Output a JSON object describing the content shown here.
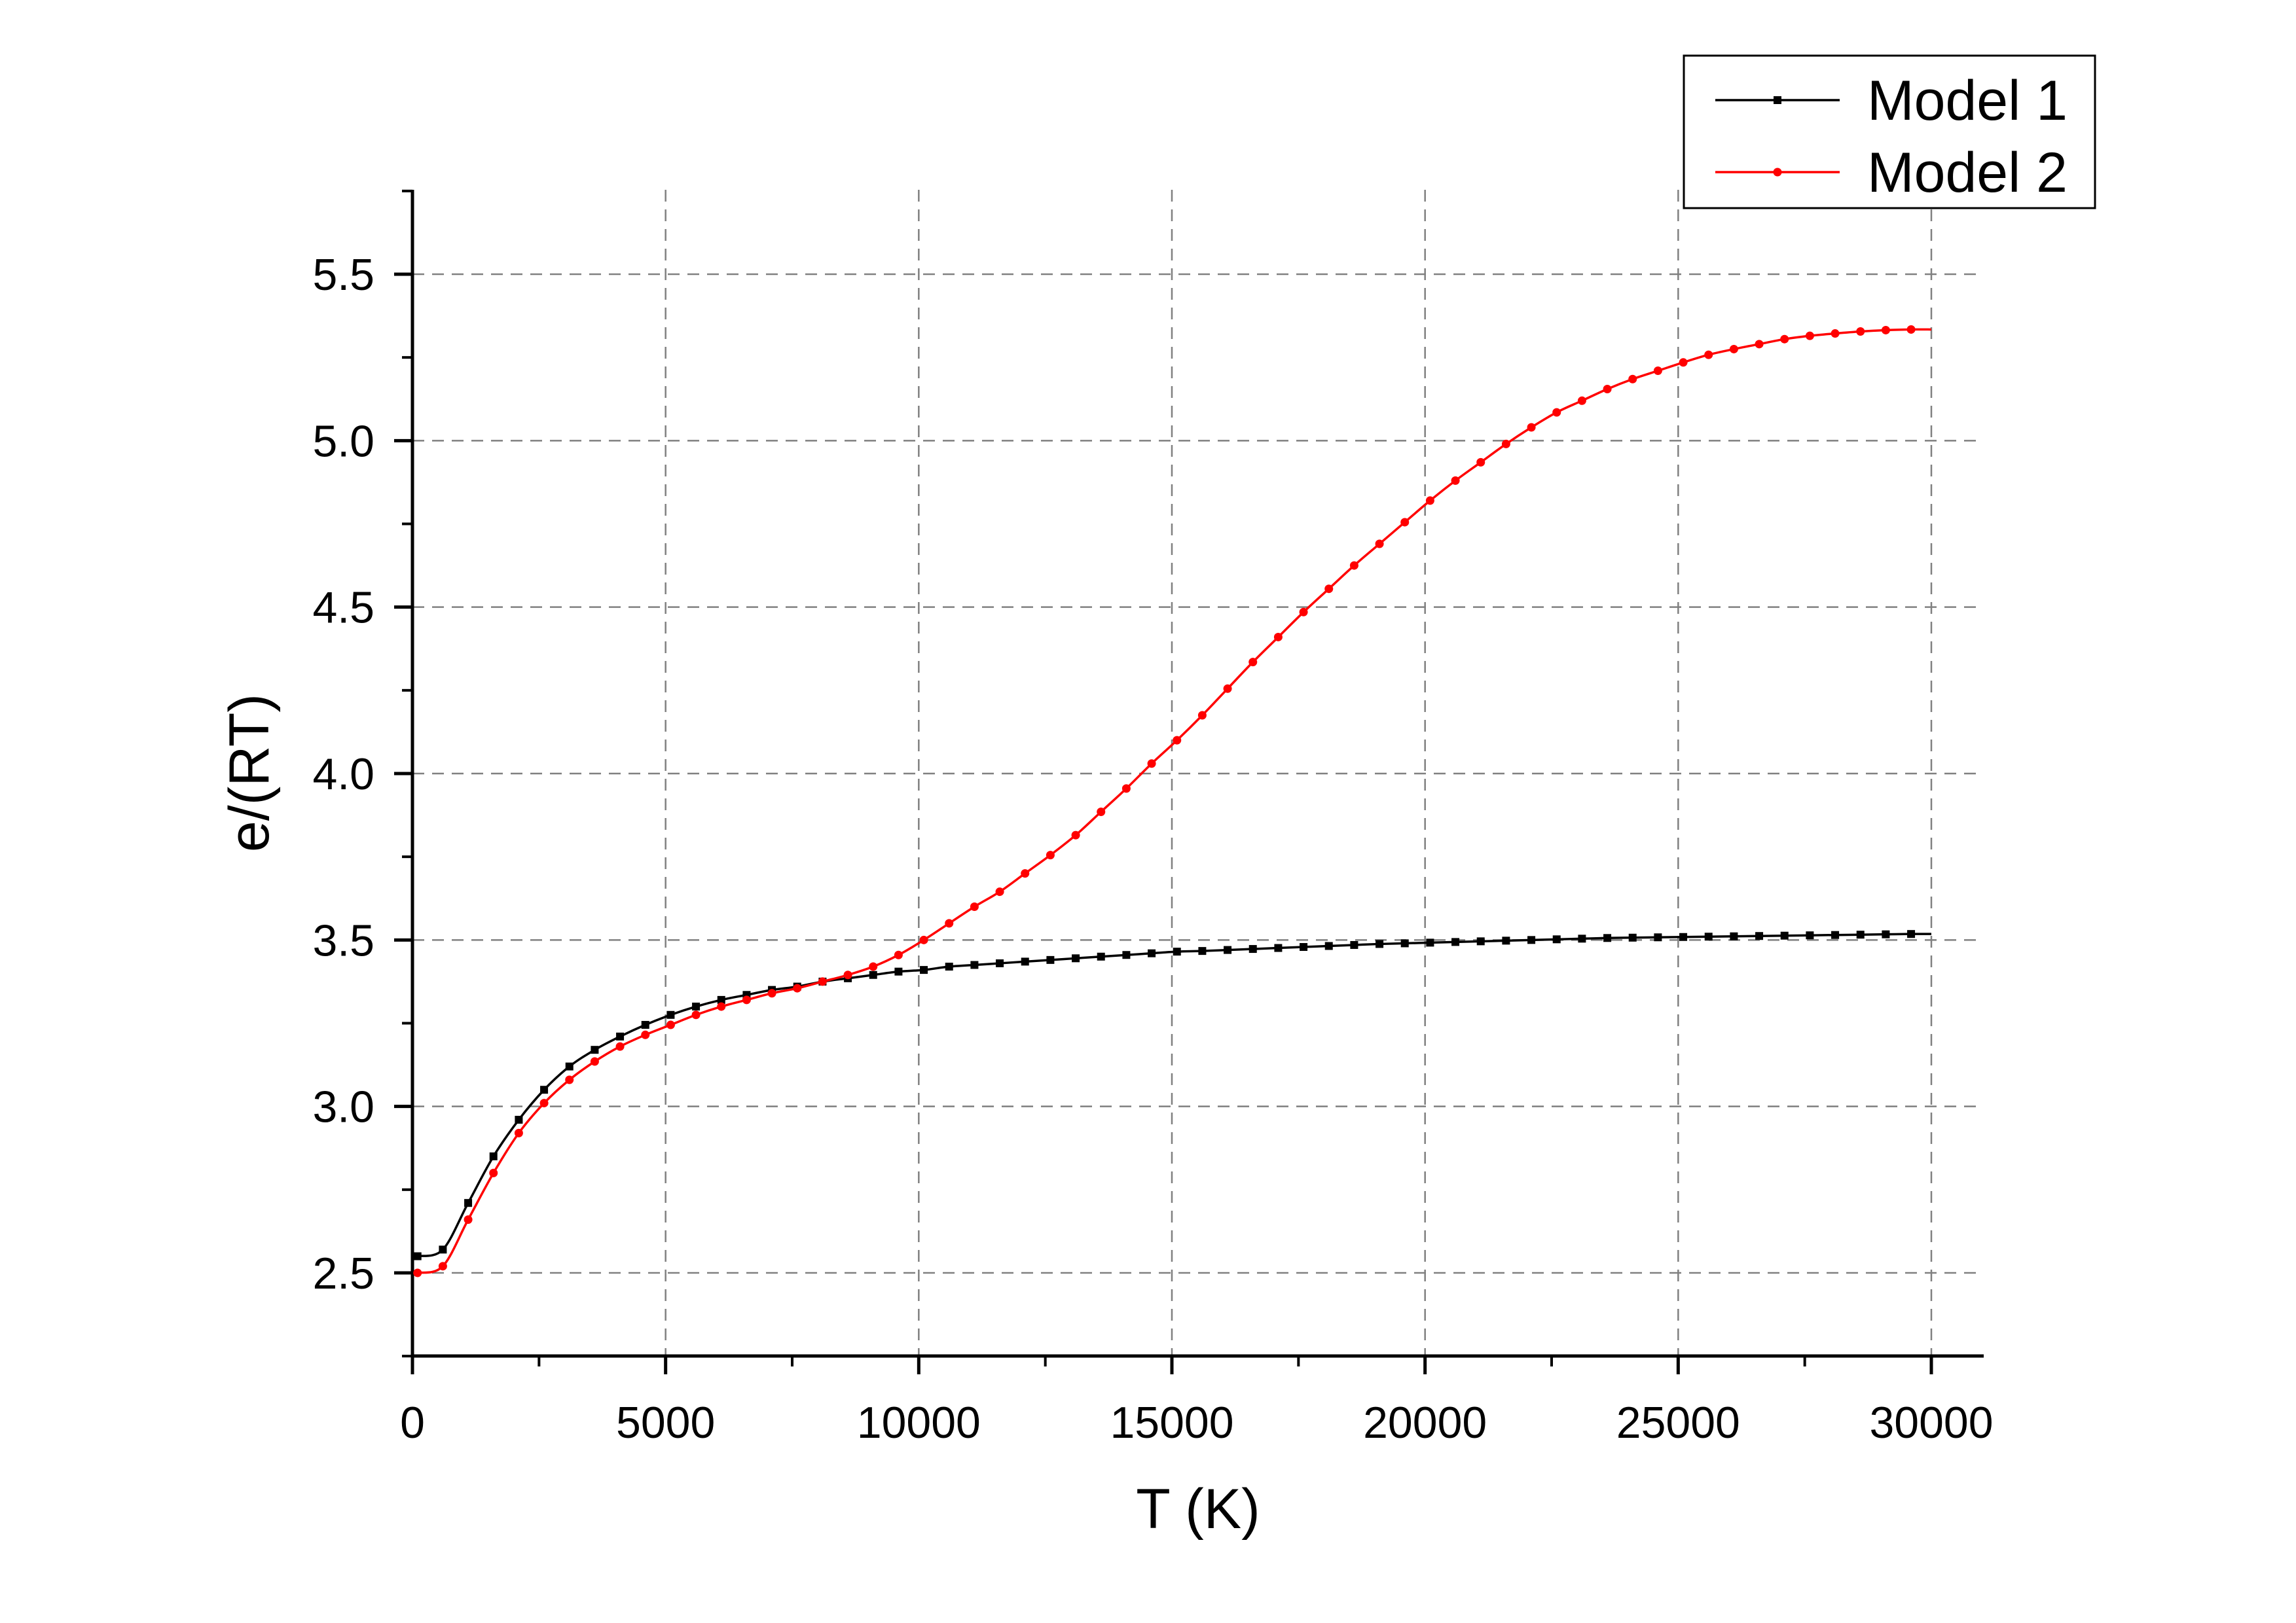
{
  "chart_data": {
    "type": "line",
    "title": "",
    "xlabel": "T (K)",
    "ylabel": "e/(RT)",
    "xlim": [
      0,
      31000
    ],
    "ylim": [
      2.25,
      5.75
    ],
    "xticks": [
      0,
      5000,
      10000,
      15000,
      20000,
      25000,
      30000
    ],
    "xtick_labels": [
      "0",
      "5000",
      "10000",
      "15000",
      "20000",
      "25000",
      "30000"
    ],
    "yticks": [
      2.5,
      3.0,
      3.5,
      4.0,
      4.5,
      5.0,
      5.5
    ],
    "ytick_labels": [
      "2.5",
      "3.0",
      "3.5",
      "4.0",
      "4.5",
      "5.0",
      "5.5"
    ],
    "grid": true,
    "legend_position": "top-right",
    "series": [
      {
        "name": "Model 1",
        "color": "#000000",
        "marker": "square",
        "x": [
          100,
          600,
          1100,
          1600,
          2100,
          2600,
          3100,
          3600,
          4100,
          4600,
          5100,
          5600,
          6100,
          6600,
          7100,
          7600,
          8100,
          8600,
          9100,
          9600,
          10100,
          10600,
          11100,
          11600,
          12100,
          12600,
          13100,
          13600,
          14100,
          14600,
          15100,
          15600,
          16100,
          16600,
          17100,
          17600,
          18100,
          18600,
          19100,
          19600,
          20100,
          20600,
          21100,
          21600,
          22100,
          22600,
          23100,
          23600,
          24100,
          24600,
          25100,
          25600,
          26100,
          26600,
          27100,
          27600,
          28100,
          28600,
          29100,
          29600
        ],
        "y": [
          2.55,
          2.57,
          2.71,
          2.85,
          2.96,
          3.05,
          3.12,
          3.17,
          3.21,
          3.245,
          3.275,
          3.3,
          3.32,
          3.335,
          3.35,
          3.36,
          3.375,
          3.385,
          3.395,
          3.405,
          3.41,
          3.42,
          3.425,
          3.43,
          3.435,
          3.44,
          3.445,
          3.45,
          3.455,
          3.46,
          3.465,
          3.467,
          3.47,
          3.473,
          3.476,
          3.479,
          3.482,
          3.485,
          3.488,
          3.49,
          3.492,
          3.494,
          3.496,
          3.498,
          3.5,
          3.502,
          3.504,
          3.506,
          3.507,
          3.508,
          3.509,
          3.51,
          3.511,
          3.512,
          3.513,
          3.514,
          3.515,
          3.516,
          3.517,
          3.518
        ]
      },
      {
        "name": "Model 2",
        "color": "#ff0000",
        "marker": "circle",
        "x": [
          100,
          600,
          1100,
          1600,
          2100,
          2600,
          3100,
          3600,
          4100,
          4600,
          5100,
          5600,
          6100,
          6600,
          7100,
          7600,
          8100,
          8600,
          9100,
          9600,
          10100,
          10600,
          11100,
          11600,
          12100,
          12600,
          13100,
          13600,
          14100,
          14600,
          15100,
          15600,
          16100,
          16600,
          17100,
          17600,
          18100,
          18600,
          19100,
          19600,
          20100,
          20600,
          21100,
          21600,
          22100,
          22600,
          23100,
          23600,
          24100,
          24600,
          25100,
          25600,
          26100,
          26600,
          27100,
          27600,
          28100,
          28600,
          29100,
          29600
        ],
        "y": [
          2.5,
          2.52,
          2.66,
          2.8,
          2.92,
          3.01,
          3.08,
          3.135,
          3.18,
          3.215,
          3.245,
          3.275,
          3.3,
          3.32,
          3.34,
          3.355,
          3.375,
          3.395,
          3.42,
          3.455,
          3.5,
          3.55,
          3.6,
          3.645,
          3.7,
          3.755,
          3.815,
          3.885,
          3.955,
          4.03,
          4.1,
          4.175,
          4.255,
          4.335,
          4.41,
          4.485,
          4.555,
          4.625,
          4.69,
          4.755,
          4.82,
          4.88,
          4.935,
          4.99,
          5.04,
          5.085,
          5.12,
          5.155,
          5.185,
          5.21,
          5.235,
          5.258,
          5.275,
          5.29,
          5.305,
          5.315,
          5.322,
          5.328,
          5.332,
          5.334
        ]
      }
    ]
  }
}
